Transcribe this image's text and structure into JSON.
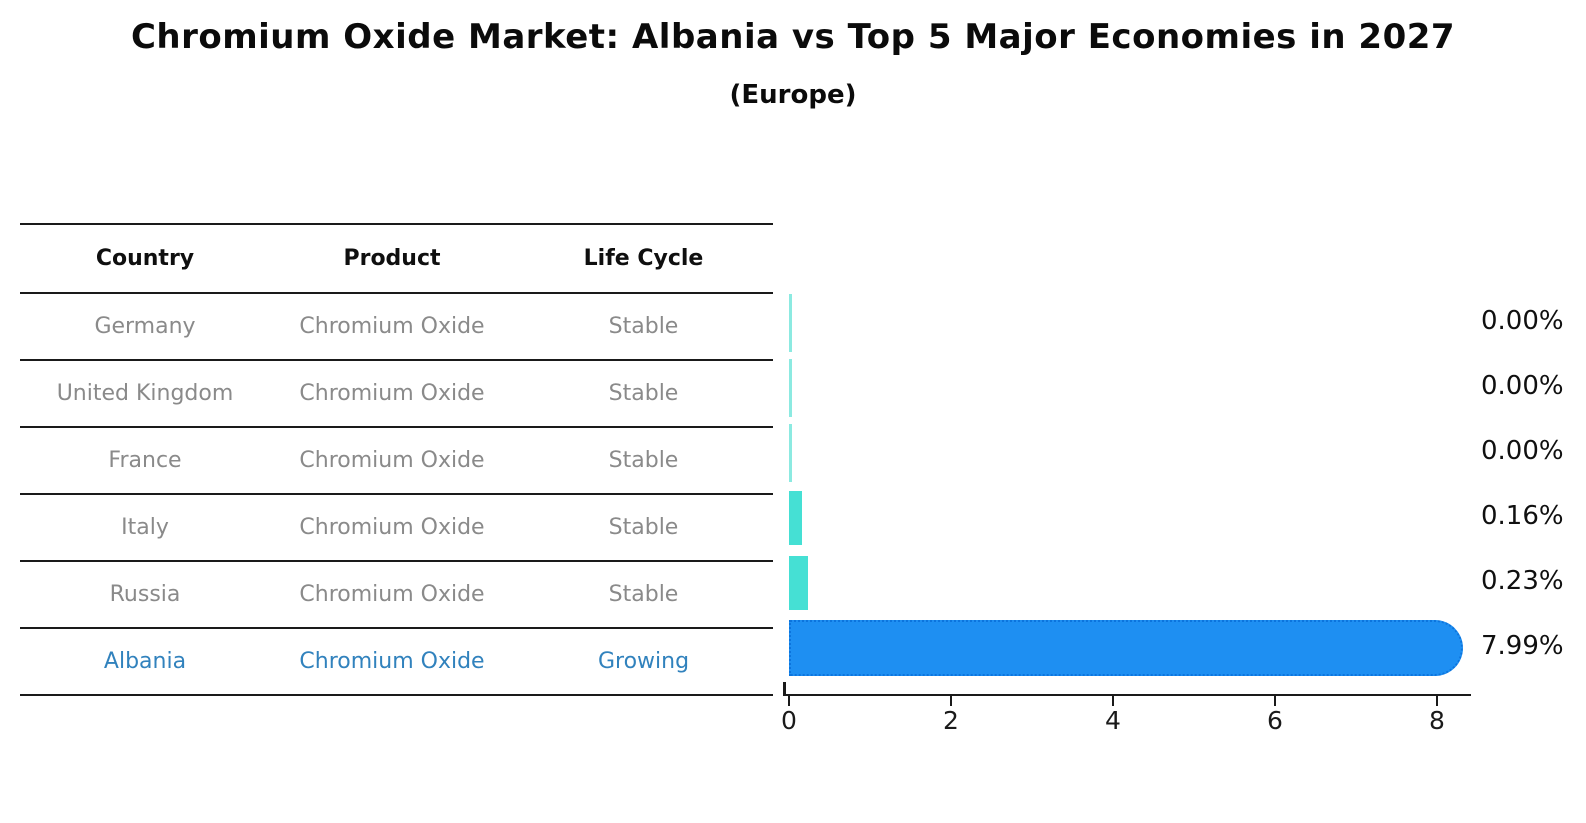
{
  "page": {
    "title": "Chromium Oxide Market: Albania vs Top 5 Major Economies in 2027",
    "subtitle": "(Europe)"
  },
  "table": {
    "headers": [
      "Country",
      "Product",
      "Life Cycle"
    ],
    "rows": [
      {
        "country": "Germany",
        "product": "Chromium Oxide",
        "life_cycle": "Stable",
        "highlight": false
      },
      {
        "country": "United Kingdom",
        "product": "Chromium Oxide",
        "life_cycle": "Stable",
        "highlight": false
      },
      {
        "country": "France",
        "product": "Chromium Oxide",
        "life_cycle": "Stable",
        "highlight": false
      },
      {
        "country": "Italy",
        "product": "Chromium Oxide",
        "life_cycle": "Stable",
        "highlight": false
      },
      {
        "country": "Russia",
        "product": "Chromium Oxide",
        "life_cycle": "Stable",
        "highlight": false
      },
      {
        "country": "Albania",
        "product": "Chromium Oxide",
        "life_cycle": "Growing",
        "highlight": true
      }
    ]
  },
  "chart_data": {
    "type": "bar",
    "orientation": "horizontal",
    "title": "Chromium Oxide Market: Albania vs Top 5 Major Economies in 2027",
    "subtitle": "(Europe)",
    "categories": [
      "Germany",
      "United Kingdom",
      "France",
      "Italy",
      "Russia",
      "Albania"
    ],
    "values": [
      0.0,
      0.0,
      0.0,
      0.16,
      0.23,
      7.99
    ],
    "value_labels": [
      "0.00%",
      "0.00%",
      "0.00%",
      "0.16%",
      "0.23%",
      "7.99%"
    ],
    "highlight_index": 5,
    "xlabel": "",
    "ylabel": "",
    "xlim": [
      0,
      8.4
    ],
    "xticks": [
      0,
      2,
      4,
      6,
      8
    ],
    "grid": false,
    "legend": false,
    "bar_colors": {
      "default": "#45e0d4",
      "zero_edge": "#8ceae1",
      "highlight": "#1e8ff2",
      "highlight_edge": "#0c74dd"
    },
    "text_colors": {
      "row_default": "#8a8a8a",
      "row_highlight": "#3182bd",
      "labels": "#101010",
      "axis": "#1a1a1a"
    }
  }
}
